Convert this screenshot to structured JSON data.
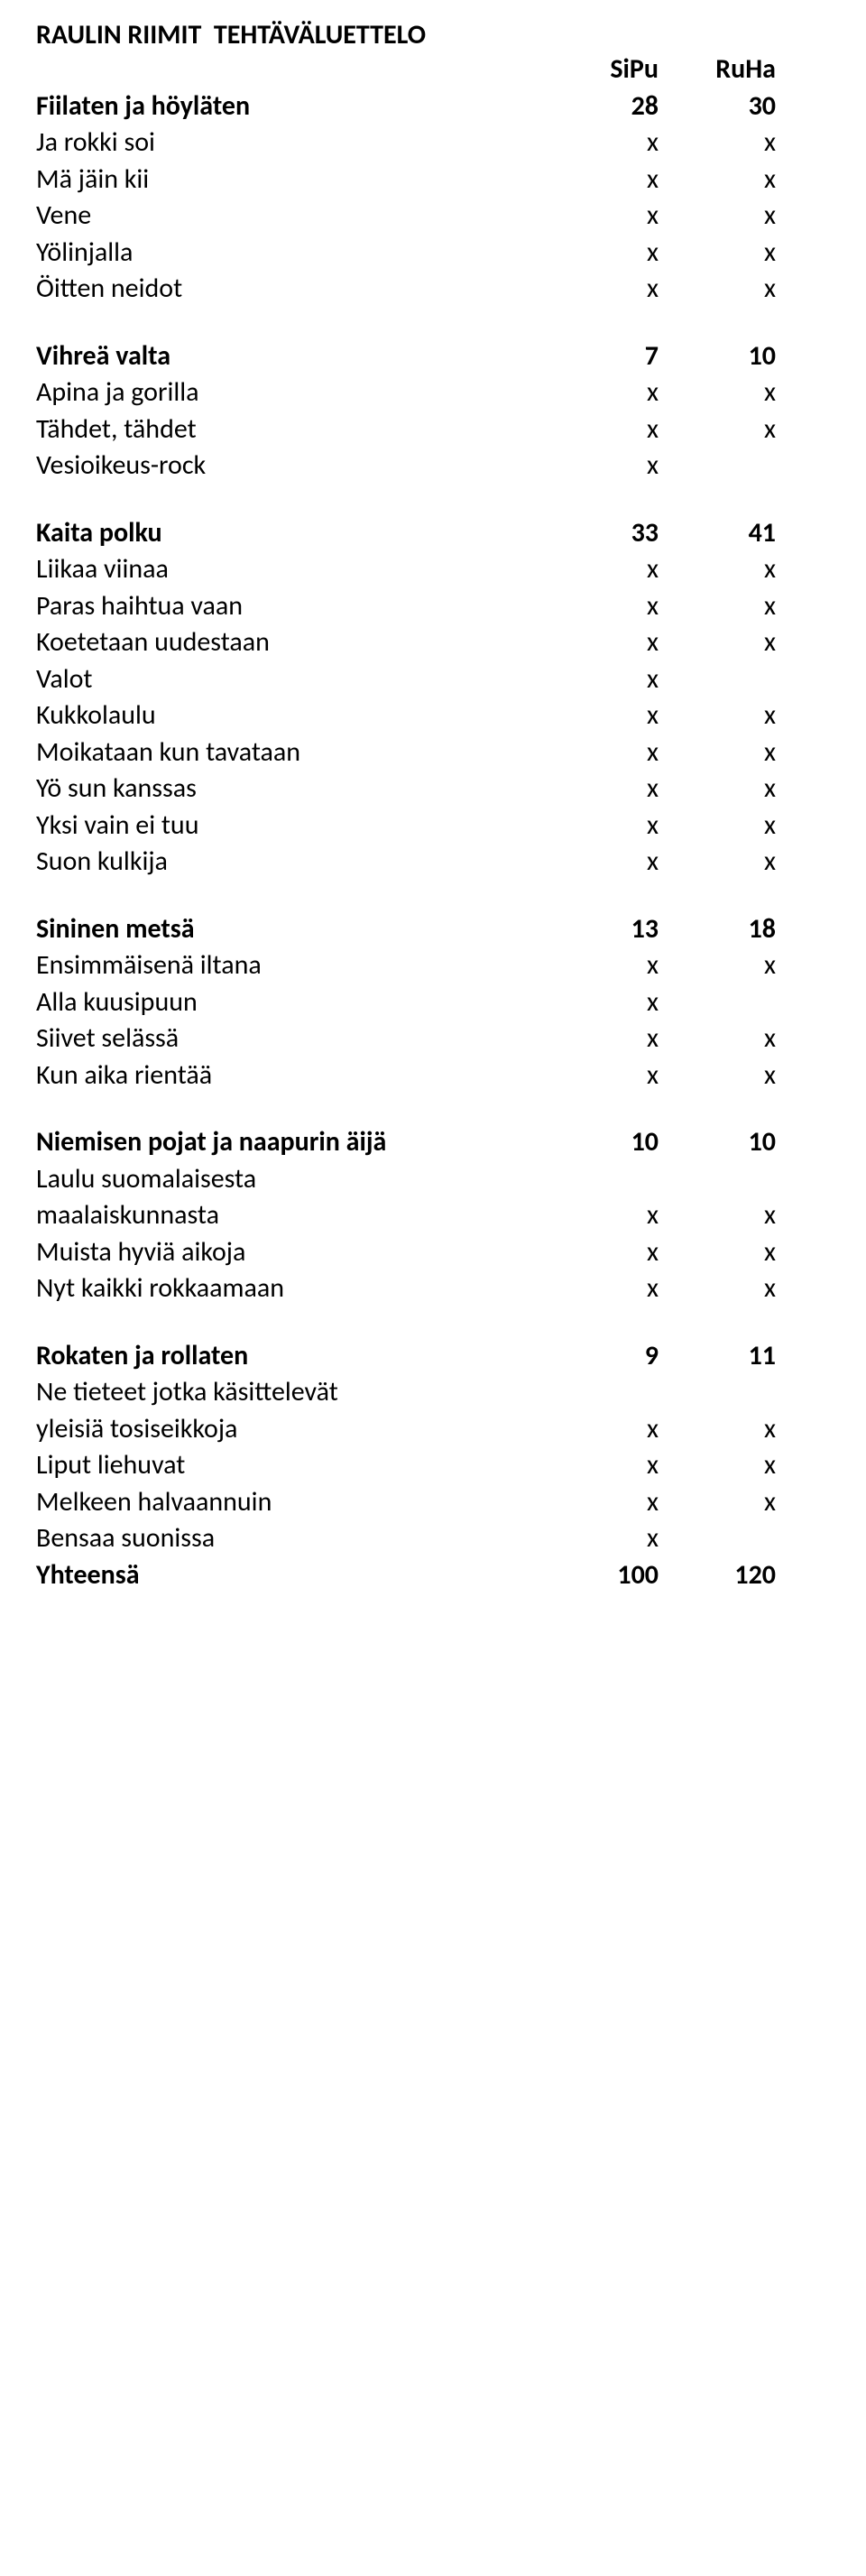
{
  "title": "RAULIN RIIMIT  TEHTÄVÄLUETTELO",
  "header_cols": [
    "SiPu",
    "RuHa"
  ],
  "blocks": [
    {
      "header": {
        "label": "Fiilaten ja höyläten",
        "c1": "28",
        "c2": "30"
      },
      "rows": [
        {
          "label": "Ja rokki soi",
          "c1": "x",
          "c2": "x"
        },
        {
          "label": "Mä jäin kii",
          "c1": "x",
          "c2": "x"
        },
        {
          "label": "Vene",
          "c1": "x",
          "c2": "x"
        },
        {
          "label": "Yölinjalla",
          "c1": "x",
          "c2": "x"
        },
        {
          "label": "Öitten neidot",
          "c1": "x",
          "c2": "x"
        }
      ]
    },
    {
      "header": {
        "label": "Vihreä valta",
        "c1": "7",
        "c2": "10"
      },
      "rows": [
        {
          "label": "Apina ja gorilla",
          "c1": "x",
          "c2": "x"
        },
        {
          "label": "Tähdet, tähdet",
          "c1": "x",
          "c2": "x"
        },
        {
          "label": "Vesioikeus-rock",
          "c1": "x",
          "c2": ""
        }
      ]
    },
    {
      "header": {
        "label": "Kaita polku",
        "c1": "33",
        "c2": "41"
      },
      "rows": [
        {
          "label": "Liikaa viinaa",
          "c1": "x",
          "c2": "x"
        },
        {
          "label": "Paras haihtua vaan",
          "c1": "x",
          "c2": "x"
        },
        {
          "label": "Koetetaan uudestaan",
          "c1": "x",
          "c2": "x"
        },
        {
          "label": "Valot",
          "c1": "x",
          "c2": ""
        },
        {
          "label": "Kukkolaulu",
          "c1": "x",
          "c2": "x"
        },
        {
          "label": "Moikataan kun tavataan",
          "c1": "x",
          "c2": "x"
        },
        {
          "label": "Yö sun kanssas",
          "c1": "x",
          "c2": "x"
        },
        {
          "label": "Yksi vain ei tuu",
          "c1": "x",
          "c2": "x"
        },
        {
          "label": "Suon kulkija",
          "c1": "x",
          "c2": "x"
        }
      ]
    },
    {
      "header": {
        "label": "Sininen metsä",
        "c1": "13",
        "c2": "18"
      },
      "rows": [
        {
          "label": "Ensimmäisenä iltana",
          "c1": "x",
          "c2": "x"
        },
        {
          "label": "Alla kuusipuun",
          "c1": "x",
          "c2": ""
        },
        {
          "label": "Siivet selässä",
          "c1": "x",
          "c2": "x"
        },
        {
          "label": "Kun aika rientää",
          "c1": "x",
          "c2": "x"
        }
      ]
    },
    {
      "header": {
        "label": "Niemisen pojat ja naapurin äijä",
        "c1": "10",
        "c2": "10"
      },
      "rows": [
        {
          "label": "Laulu suomalaisesta",
          "c1": "",
          "c2": ""
        },
        {
          "label": "maalaiskunnasta",
          "c1": "x",
          "c2": "x"
        },
        {
          "label": "Muista hyviä aikoja",
          "c1": "x",
          "c2": "x"
        },
        {
          "label": "Nyt kaikki rokkaamaan",
          "c1": "x",
          "c2": "x"
        }
      ]
    },
    {
      "header": {
        "label": "Rokaten ja rollaten",
        "c1": "9",
        "c2": "11"
      },
      "rows": [
        {
          "label": "Ne tieteet jotka käsittelevät",
          "c1": "",
          "c2": ""
        },
        {
          "label": "yleisiä tosiseikkoja",
          "c1": "x",
          "c2": "x"
        },
        {
          "label": "Liput liehuvat",
          "c1": "x",
          "c2": "x"
        },
        {
          "label": "Melkeen halvaannuin",
          "c1": "x",
          "c2": "x"
        },
        {
          "label": "Bensaa suonissa",
          "c1": "x",
          "c2": ""
        }
      ],
      "footer": {
        "label": "Yhteensä",
        "c1": "100",
        "c2": "120"
      }
    }
  ]
}
